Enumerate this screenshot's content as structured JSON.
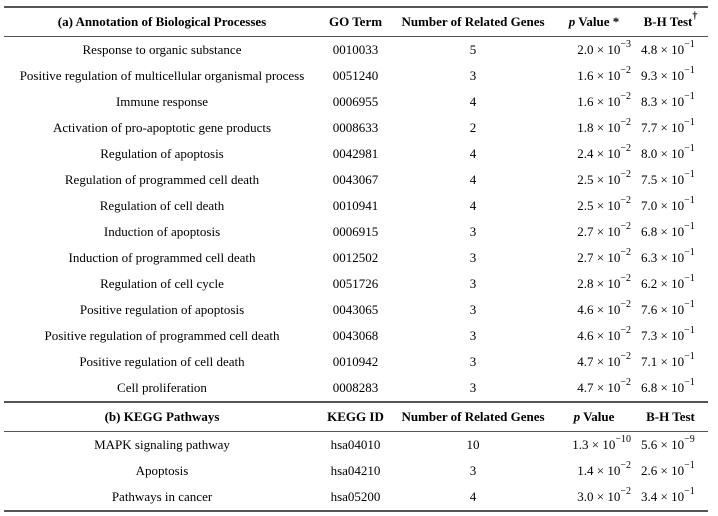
{
  "section_a": {
    "headers": {
      "title": "(a) Annotation of Biological Processes",
      "id": "GO Term",
      "genes": "Number of Related Genes",
      "p_italic": "p",
      "p_rest": " Value *",
      "bh": "B-H Test",
      "bh_mark": "†"
    },
    "rows": [
      {
        "name": "Response to organic substance",
        "id": "0010033",
        "genes": "5",
        "p_m": "2.0 × 10",
        "p_e": "−3",
        "b_m": "4.8 × 10",
        "b_e": "−1"
      },
      {
        "name": "Positive regulation of multicellular organismal process",
        "id": "0051240",
        "genes": "3",
        "p_m": "1.6 × 10",
        "p_e": "−2",
        "b_m": "9.3 × 10",
        "b_e": "−1"
      },
      {
        "name": "Immune response",
        "id": "0006955",
        "genes": "4",
        "p_m": "1.6 × 10",
        "p_e": "−2",
        "b_m": "8.3 × 10",
        "b_e": "−1"
      },
      {
        "name": "Activation of pro-apoptotic gene products",
        "id": "0008633",
        "genes": "2",
        "p_m": "1.8 × 10",
        "p_e": "−2",
        "b_m": "7.7 × 10",
        "b_e": "−1"
      },
      {
        "name": "Regulation of apoptosis",
        "id": "0042981",
        "genes": "4",
        "p_m": "2.4 × 10",
        "p_e": "−2",
        "b_m": "8.0 × 10",
        "b_e": "−1"
      },
      {
        "name": "Regulation of programmed cell death",
        "id": "0043067",
        "genes": "4",
        "p_m": "2.5 × 10",
        "p_e": "−2",
        "b_m": "7.5 × 10",
        "b_e": "−1"
      },
      {
        "name": "Regulation of cell death",
        "id": "0010941",
        "genes": "4",
        "p_m": "2.5 × 10",
        "p_e": "−2",
        "b_m": "7.0 × 10",
        "b_e": "−1"
      },
      {
        "name": "Induction of apoptosis",
        "id": "0006915",
        "genes": "3",
        "p_m": "2.7 × 10",
        "p_e": "−2",
        "b_m": "6.8 × 10",
        "b_e": "−1"
      },
      {
        "name": "Induction of programmed cell death",
        "id": "0012502",
        "genes": "3",
        "p_m": "2.7 × 10",
        "p_e": "−2",
        "b_m": "6.3 × 10",
        "b_e": "−1"
      },
      {
        "name": "Regulation of cell cycle",
        "id": "0051726",
        "genes": "3",
        "p_m": "2.8 × 10",
        "p_e": "−2",
        "b_m": "6.2 × 10",
        "b_e": "−1"
      },
      {
        "name": "Positive regulation of apoptosis",
        "id": "0043065",
        "genes": "3",
        "p_m": "4.6 × 10",
        "p_e": "−2",
        "b_m": "7.6 × 10",
        "b_e": "−1"
      },
      {
        "name": "Positive regulation of programmed cell death",
        "id": "0043068",
        "genes": "3",
        "p_m": "4.6 × 10",
        "p_e": "−2",
        "b_m": "7.3 × 10",
        "b_e": "−1"
      },
      {
        "name": "Positive regulation of cell death",
        "id": "0010942",
        "genes": "3",
        "p_m": "4.7 × 10",
        "p_e": "−2",
        "b_m": "7.1 × 10",
        "b_e": "−1"
      },
      {
        "name": "Cell proliferation",
        "id": "0008283",
        "genes": "3",
        "p_m": "4.7 × 10",
        "p_e": "−2",
        "b_m": "6.8 × 10",
        "b_e": "−1"
      }
    ]
  },
  "section_b": {
    "headers": {
      "title": "(b) KEGG Pathways",
      "id": "KEGG ID",
      "genes": "Number of Related Genes",
      "p_italic": "p",
      "p_rest": " Value",
      "bh": "B-H Test"
    },
    "rows": [
      {
        "name": "MAPK signaling pathway",
        "id": "hsa04010",
        "genes": "10",
        "p_m": "1.3 × 10",
        "p_e": "−10",
        "b_m": "5.6 × 10",
        "b_e": "−9"
      },
      {
        "name": "Apoptosis",
        "id": "hsa04210",
        "genes": "3",
        "p_m": "1.4 × 10",
        "p_e": "−2",
        "b_m": "2.6 × 10",
        "b_e": "−1"
      },
      {
        "name": "Pathways in cancer",
        "id": "hsa05200",
        "genes": "4",
        "p_m": "3.0 × 10",
        "p_e": "−2",
        "b_m": "3.4 × 10",
        "b_e": "−1"
      }
    ]
  }
}
